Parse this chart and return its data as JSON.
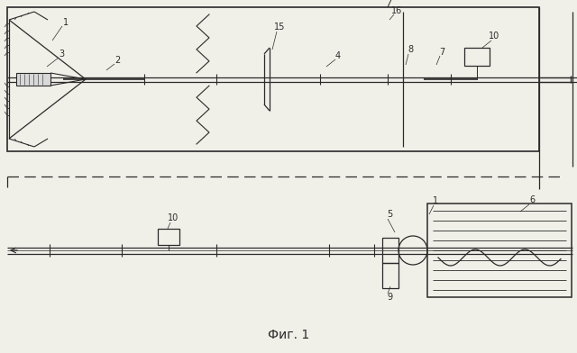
{
  "bg_color": "#f0efe8",
  "line_color": "#2a2a2a",
  "fig_label": "Фиг. 1"
}
